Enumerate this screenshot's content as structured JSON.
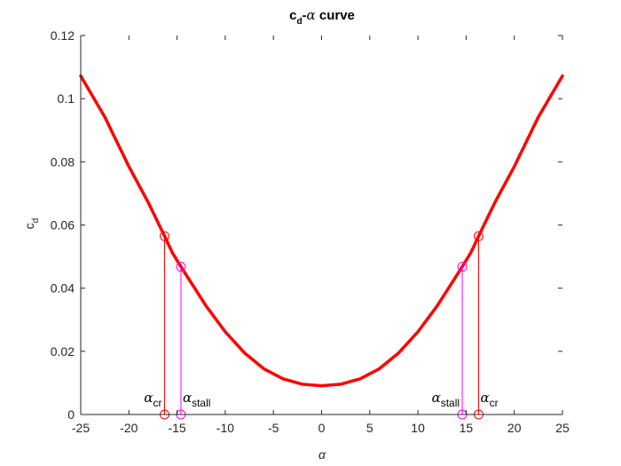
{
  "chart_data": {
    "type": "line",
    "title": {
      "main": "c",
      "sub": "d",
      "dash": "-",
      "greek": "α",
      "rest": " curve"
    },
    "xlabel": "α",
    "ylabel": {
      "main": "c",
      "sub": "d"
    },
    "xlim": [
      -25,
      25
    ],
    "ylim": [
      0,
      0.12
    ],
    "xticks": [
      -25,
      -20,
      -15,
      -10,
      -5,
      0,
      5,
      10,
      15,
      20,
      25
    ],
    "xtick_labels": [
      "-25",
      "-20",
      "-15",
      "-10",
      "-5",
      "0",
      "5",
      "10",
      "15",
      "20",
      "25"
    ],
    "yticks": [
      0,
      0.02,
      0.04,
      0.06,
      0.08,
      0.1,
      0.12
    ],
    "ytick_labels": [
      "0",
      "0.02",
      "0.04",
      "0.06",
      "0.08",
      "0.1",
      "0.12"
    ],
    "grid": false,
    "legend": "none",
    "series": [
      {
        "color": "#ff0000",
        "x": [
          -25,
          -22.5,
          -20,
          -18,
          -16.3,
          -15.5,
          -14.6,
          -12,
          -10,
          -8,
          -6,
          -4,
          -2,
          0,
          2,
          4,
          6,
          8,
          10,
          12,
          14.6,
          15.5,
          16.3,
          18,
          20,
          22.5,
          25
        ],
        "y": [
          0.1072,
          0.0942,
          0.0785,
          0.0672,
          0.0565,
          0.0513,
          0.0468,
          0.0344,
          0.0262,
          0.0195,
          0.0145,
          0.0113,
          0.0096,
          0.0091,
          0.0096,
          0.0113,
          0.0145,
          0.0195,
          0.0262,
          0.0344,
          0.0468,
          0.0513,
          0.0565,
          0.0672,
          0.0785,
          0.0942,
          0.1072
        ]
      }
    ],
    "markers": [
      {
        "name": "alpha_cr_left",
        "x": -16.3,
        "y": 0.0565,
        "color": "#ff0000",
        "label_greek": "α",
        "label_sub": "cr",
        "side": "left"
      },
      {
        "name": "alpha_stall_left",
        "x": -14.6,
        "y": 0.0468,
        "color": "#ff00ff",
        "label_greek": "α",
        "label_sub": "stall",
        "side": "right"
      },
      {
        "name": "alpha_stall_right",
        "x": 14.6,
        "y": 0.0468,
        "color": "#ff00ff",
        "label_greek": "α",
        "label_sub": "stall",
        "side": "left"
      },
      {
        "name": "alpha_cr_right",
        "x": 16.3,
        "y": 0.0565,
        "color": "#ff0000",
        "label_greek": "α",
        "label_sub": "cr",
        "side": "right"
      }
    ]
  }
}
